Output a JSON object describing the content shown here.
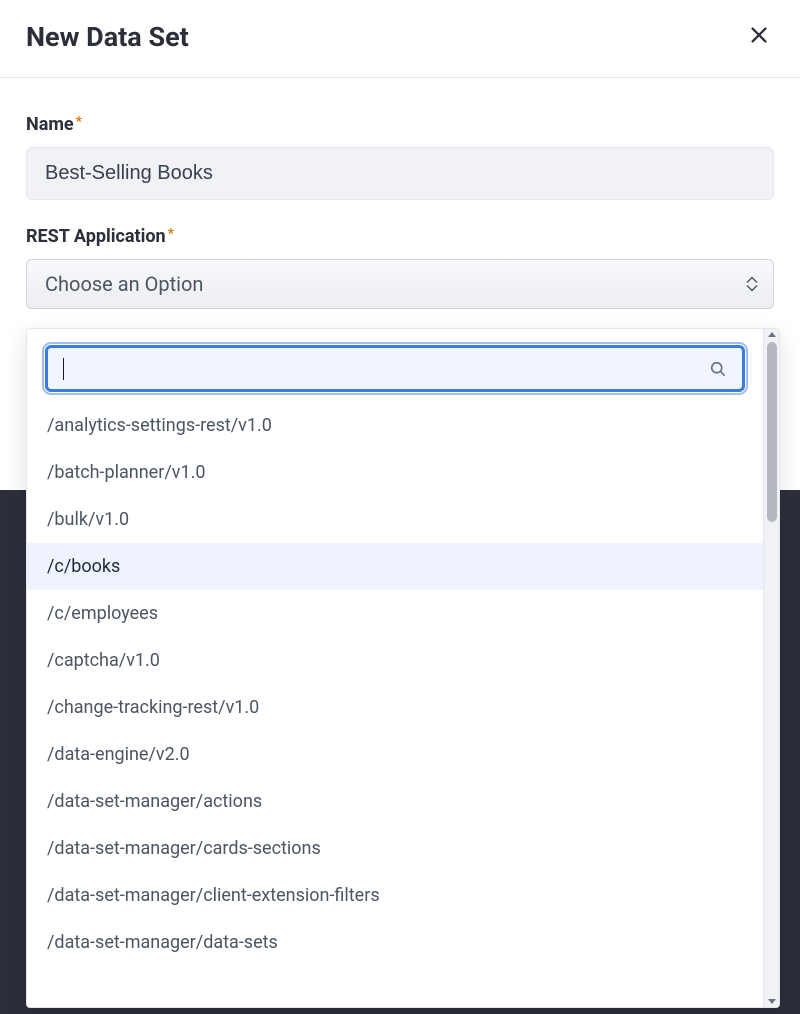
{
  "modal": {
    "title": "New Data Set",
    "form": {
      "name": {
        "label": "Name",
        "value": "Best-Selling Books",
        "required": true
      },
      "restApplication": {
        "label": "REST Application",
        "placeholder": "Choose an Option",
        "required": true
      }
    }
  },
  "dropdown": {
    "searchValue": "",
    "highlightedIndex": 3,
    "options": [
      "/analytics-settings-rest/v1.0",
      "/batch-planner/v1.0",
      "/bulk/v1.0",
      "/c/books",
      "/c/employees",
      "/captcha/v1.0",
      "/change-tracking-rest/v1.0",
      "/data-engine/v2.0",
      "/data-set-manager/actions",
      "/data-set-manager/cards-sections",
      "/data-set-manager/client-extension-filters",
      "/data-set-manager/data-sets"
    ]
  },
  "colors": {
    "text_primary": "#2c2f3a",
    "text_secondary": "#4b5563",
    "input_bg": "#f1f2f5",
    "border": "#e5e7eb",
    "accent_blue": "#3a7de0",
    "required_star": "#d97706",
    "highlight_bg": "#eef3ff",
    "dark_backdrop": "#2c2f3a"
  }
}
